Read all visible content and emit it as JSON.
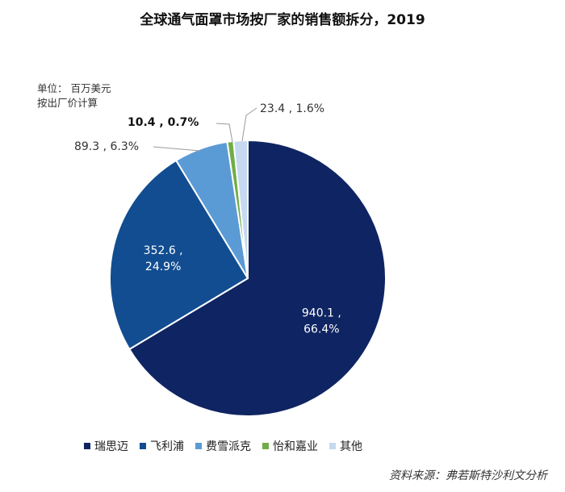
{
  "chart_data": {
    "type": "pie",
    "title": "全球通气面罩市场按厂家的销售额拆分，2019",
    "unit_note": [
      "单位：  百万美元",
      "按出厂价计算"
    ],
    "slices": [
      {
        "name": "瑞思迈",
        "value": 940.1,
        "percent": "66.4%",
        "label": "940.1 , 66.4%",
        "color": "#0f2462"
      },
      {
        "name": "飞利浦",
        "value": 352.6,
        "percent": "24.9%",
        "label": "352.6 , 24.9%",
        "color": "#124d91"
      },
      {
        "name": "费雪派克",
        "value": 89.3,
        "percent": "6.3%",
        "label": "89.3 , 6.3%",
        "color": "#5b9bd5"
      },
      {
        "name": "怡和嘉业",
        "value": 10.4,
        "percent": "0.7%",
        "label": "10.4 , 0.7%",
        "color": "#70ad47"
      },
      {
        "name": "其他",
        "value": 23.4,
        "percent": "1.6%",
        "label": "23.4 , 1.6%",
        "color": "#c5d9f1"
      }
    ],
    "legend_position": "bottom",
    "source": "资料来源：弗若斯特沙利文分析"
  }
}
